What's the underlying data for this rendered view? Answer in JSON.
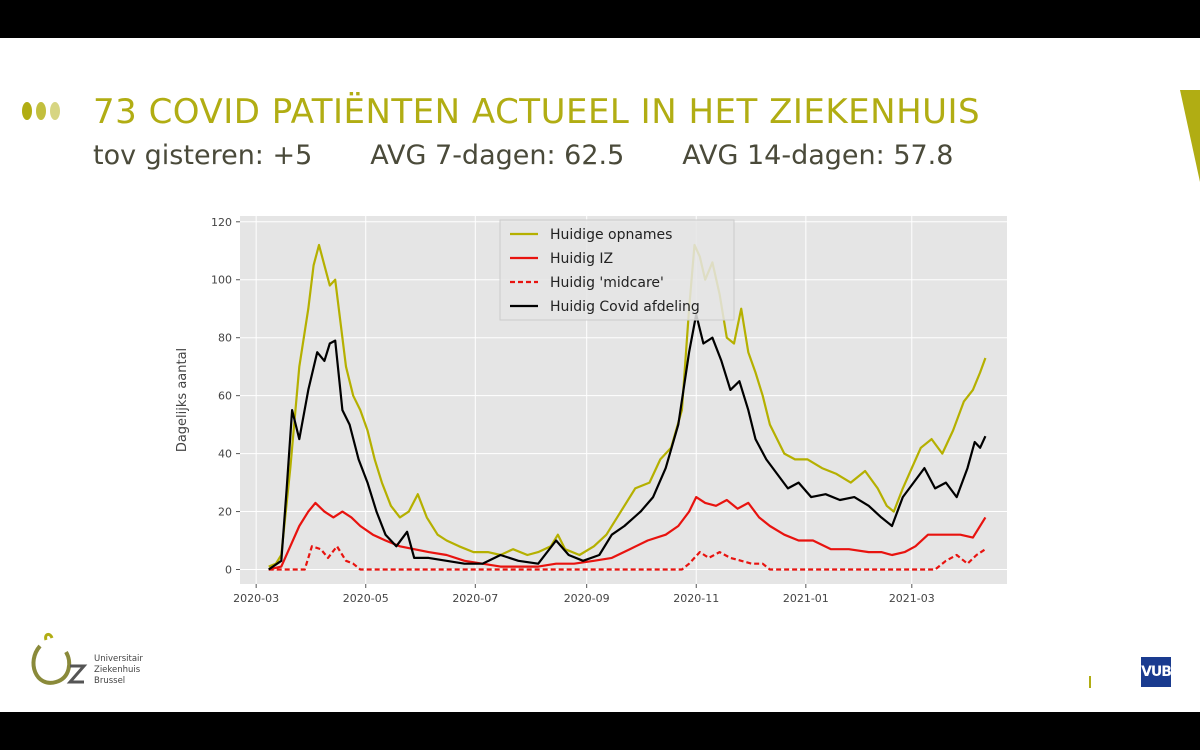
{
  "header": {
    "title": "73 COVID PATIËNTEN ACTUEEL IN HET ZIEKENHUIS",
    "stat_change": "tov gisteren: +5",
    "stat_avg7": "AVG 7-dagen: 62.5",
    "stat_avg14": "AVG 14-dagen: 57.8"
  },
  "colors": {
    "accent": "#b1ad13",
    "accent_light": "#cfcd6d",
    "dark": "#4a4a3a"
  },
  "footer": {
    "logo_lines": [
      "Universitair",
      "Ziekenhuis",
      "Brussel"
    ],
    "logo_mark": "UZ",
    "partner_logo": "VUB"
  },
  "chart_data": {
    "type": "line",
    "ylabel": "Dagelijks aantal",
    "xlabel": "",
    "ylim": [
      -5,
      122
    ],
    "yticks": [
      0,
      20,
      40,
      60,
      80,
      100,
      120
    ],
    "xticks": [
      "2020-03",
      "2020-05",
      "2020-07",
      "2020-09",
      "2020-11",
      "2021-01",
      "2021-03"
    ],
    "xlim": [
      "2020-02-21",
      "2021-04-23"
    ],
    "grid": true,
    "legend_position": "top-center",
    "series": [
      {
        "name": "Huidige opnames",
        "color": "#b5b000",
        "style": "solid",
        "points": [
          [
            "2020-03-08",
            1
          ],
          [
            "2020-03-12",
            2
          ],
          [
            "2020-03-15",
            5
          ],
          [
            "2020-03-20",
            35
          ],
          [
            "2020-03-25",
            70
          ],
          [
            "2020-03-30",
            90
          ],
          [
            "2020-04-02",
            105
          ],
          [
            "2020-04-05",
            112
          ],
          [
            "2020-04-08",
            105
          ],
          [
            "2020-04-11",
            98
          ],
          [
            "2020-04-14",
            100
          ],
          [
            "2020-04-17",
            85
          ],
          [
            "2020-04-20",
            70
          ],
          [
            "2020-04-24",
            60
          ],
          [
            "2020-04-28",
            55
          ],
          [
            "2020-05-02",
            48
          ],
          [
            "2020-05-06",
            38
          ],
          [
            "2020-05-10",
            30
          ],
          [
            "2020-05-15",
            22
          ],
          [
            "2020-05-20",
            18
          ],
          [
            "2020-05-25",
            20
          ],
          [
            "2020-05-30",
            26
          ],
          [
            "2020-06-04",
            18
          ],
          [
            "2020-06-10",
            12
          ],
          [
            "2020-06-15",
            10
          ],
          [
            "2020-06-22",
            8
          ],
          [
            "2020-06-30",
            6
          ],
          [
            "2020-07-08",
            6
          ],
          [
            "2020-07-15",
            5
          ],
          [
            "2020-07-22",
            7
          ],
          [
            "2020-07-30",
            5
          ],
          [
            "2020-08-05",
            6
          ],
          [
            "2020-08-12",
            8
          ],
          [
            "2020-08-16",
            12
          ],
          [
            "2020-08-20",
            7
          ],
          [
            "2020-08-28",
            5
          ],
          [
            "2020-09-05",
            8
          ],
          [
            "2020-09-12",
            12
          ],
          [
            "2020-09-20",
            20
          ],
          [
            "2020-09-28",
            28
          ],
          [
            "2020-10-06",
            30
          ],
          [
            "2020-10-12",
            38
          ],
          [
            "2020-10-18",
            42
          ],
          [
            "2020-10-24",
            55
          ],
          [
            "2020-10-28",
            90
          ],
          [
            "2020-10-31",
            112
          ],
          [
            "2020-11-03",
            108
          ],
          [
            "2020-11-06",
            100
          ],
          [
            "2020-11-10",
            106
          ],
          [
            "2020-11-14",
            95
          ],
          [
            "2020-11-18",
            80
          ],
          [
            "2020-11-22",
            78
          ],
          [
            "2020-11-26",
            90
          ],
          [
            "2020-11-30",
            75
          ],
          [
            "2020-12-04",
            68
          ],
          [
            "2020-12-08",
            60
          ],
          [
            "2020-12-12",
            50
          ],
          [
            "2020-12-16",
            45
          ],
          [
            "2020-12-20",
            40
          ],
          [
            "2020-12-26",
            38
          ],
          [
            "2021-01-02",
            38
          ],
          [
            "2021-01-10",
            35
          ],
          [
            "2021-01-18",
            33
          ],
          [
            "2021-01-26",
            30
          ],
          [
            "2021-02-03",
            34
          ],
          [
            "2021-02-10",
            28
          ],
          [
            "2021-02-15",
            22
          ],
          [
            "2021-02-19",
            20
          ],
          [
            "2021-02-24",
            28
          ],
          [
            "2021-03-01",
            35
          ],
          [
            "2021-03-06",
            42
          ],
          [
            "2021-03-12",
            45
          ],
          [
            "2021-03-18",
            40
          ],
          [
            "2021-03-24",
            48
          ],
          [
            "2021-03-30",
            58
          ],
          [
            "2021-04-04",
            62
          ],
          [
            "2021-04-08",
            68
          ],
          [
            "2021-04-11",
            73
          ]
        ]
      },
      {
        "name": "Huidig IZ",
        "color": "#e8130f",
        "style": "solid",
        "points": [
          [
            "2020-03-08",
            0
          ],
          [
            "2020-03-15",
            1
          ],
          [
            "2020-03-20",
            8
          ],
          [
            "2020-03-25",
            15
          ],
          [
            "2020-03-30",
            20
          ],
          [
            "2020-04-03",
            23
          ],
          [
            "2020-04-08",
            20
          ],
          [
            "2020-04-13",
            18
          ],
          [
            "2020-04-18",
            20
          ],
          [
            "2020-04-23",
            18
          ],
          [
            "2020-04-28",
            15
          ],
          [
            "2020-05-05",
            12
          ],
          [
            "2020-05-12",
            10
          ],
          [
            "2020-05-20",
            8
          ],
          [
            "2020-05-28",
            7
          ],
          [
            "2020-06-05",
            6
          ],
          [
            "2020-06-15",
            5
          ],
          [
            "2020-06-25",
            3
          ],
          [
            "2020-07-05",
            2
          ],
          [
            "2020-07-15",
            1
          ],
          [
            "2020-07-25",
            1
          ],
          [
            "2020-08-05",
            1
          ],
          [
            "2020-08-15",
            2
          ],
          [
            "2020-08-25",
            2
          ],
          [
            "2020-09-05",
            3
          ],
          [
            "2020-09-15",
            4
          ],
          [
            "2020-09-25",
            7
          ],
          [
            "2020-10-05",
            10
          ],
          [
            "2020-10-15",
            12
          ],
          [
            "2020-10-22",
            15
          ],
          [
            "2020-10-28",
            20
          ],
          [
            "2020-11-01",
            25
          ],
          [
            "2020-11-06",
            23
          ],
          [
            "2020-11-12",
            22
          ],
          [
            "2020-11-18",
            24
          ],
          [
            "2020-11-24",
            21
          ],
          [
            "2020-11-30",
            23
          ],
          [
            "2020-12-06",
            18
          ],
          [
            "2020-12-12",
            15
          ],
          [
            "2020-12-20",
            12
          ],
          [
            "2020-12-28",
            10
          ],
          [
            "2021-01-05",
            10
          ],
          [
            "2021-01-15",
            7
          ],
          [
            "2021-01-25",
            7
          ],
          [
            "2021-02-05",
            6
          ],
          [
            "2021-02-12",
            6
          ],
          [
            "2021-02-18",
            5
          ],
          [
            "2021-02-25",
            6
          ],
          [
            "2021-03-03",
            8
          ],
          [
            "2021-03-10",
            12
          ],
          [
            "2021-03-20",
            12
          ],
          [
            "2021-03-28",
            12
          ],
          [
            "2021-04-04",
            11
          ],
          [
            "2021-04-11",
            18
          ]
        ]
      },
      {
        "name": "Huidig 'midcare'",
        "color": "#e8130f",
        "style": "dashed",
        "points": [
          [
            "2020-03-08",
            0
          ],
          [
            "2020-03-28",
            0
          ],
          [
            "2020-04-01",
            8
          ],
          [
            "2020-04-06",
            7
          ],
          [
            "2020-04-10",
            4
          ],
          [
            "2020-04-15",
            8
          ],
          [
            "2020-04-20",
            3
          ],
          [
            "2020-04-24",
            2
          ],
          [
            "2020-04-28",
            0
          ],
          [
            "2020-10-24",
            0
          ],
          [
            "2020-10-28",
            2
          ],
          [
            "2020-11-03",
            6
          ],
          [
            "2020-11-08",
            4
          ],
          [
            "2020-11-14",
            6
          ],
          [
            "2020-11-20",
            4
          ],
          [
            "2020-11-26",
            3
          ],
          [
            "2020-12-02",
            2
          ],
          [
            "2020-12-08",
            2
          ],
          [
            "2020-12-12",
            0
          ],
          [
            "2021-03-14",
            0
          ],
          [
            "2021-03-20",
            3
          ],
          [
            "2021-03-26",
            5
          ],
          [
            "2021-04-01",
            2
          ],
          [
            "2021-04-06",
            5
          ],
          [
            "2021-04-11",
            7
          ]
        ]
      },
      {
        "name": "Huidig Covid afdeling",
        "color": "#000000",
        "style": "solid",
        "points": [
          [
            "2020-03-08",
            0
          ],
          [
            "2020-03-15",
            3
          ],
          [
            "2020-03-18",
            28
          ],
          [
            "2020-03-21",
            55
          ],
          [
            "2020-03-25",
            45
          ],
          [
            "2020-03-30",
            62
          ],
          [
            "2020-04-04",
            75
          ],
          [
            "2020-04-08",
            72
          ],
          [
            "2020-04-11",
            78
          ],
          [
            "2020-04-14",
            79
          ],
          [
            "2020-04-18",
            55
          ],
          [
            "2020-04-22",
            50
          ],
          [
            "2020-04-27",
            38
          ],
          [
            "2020-05-02",
            30
          ],
          [
            "2020-05-07",
            20
          ],
          [
            "2020-05-12",
            12
          ],
          [
            "2020-05-18",
            8
          ],
          [
            "2020-05-24",
            13
          ],
          [
            "2020-05-28",
            4
          ],
          [
            "2020-06-05",
            4
          ],
          [
            "2020-06-15",
            3
          ],
          [
            "2020-06-25",
            2
          ],
          [
            "2020-07-05",
            2
          ],
          [
            "2020-07-15",
            5
          ],
          [
            "2020-07-25",
            3
          ],
          [
            "2020-08-05",
            2
          ],
          [
            "2020-08-15",
            10
          ],
          [
            "2020-08-22",
            5
          ],
          [
            "2020-08-30",
            3
          ],
          [
            "2020-09-08",
            5
          ],
          [
            "2020-09-15",
            12
          ],
          [
            "2020-09-22",
            15
          ],
          [
            "2020-10-01",
            20
          ],
          [
            "2020-10-08",
            25
          ],
          [
            "2020-10-15",
            35
          ],
          [
            "2020-10-22",
            50
          ],
          [
            "2020-10-28",
            75
          ],
          [
            "2020-11-01",
            88
          ],
          [
            "2020-11-05",
            78
          ],
          [
            "2020-11-10",
            80
          ],
          [
            "2020-11-15",
            72
          ],
          [
            "2020-11-20",
            62
          ],
          [
            "2020-11-25",
            65
          ],
          [
            "2020-11-30",
            55
          ],
          [
            "2020-12-04",
            45
          ],
          [
            "2020-12-10",
            38
          ],
          [
            "2020-12-16",
            33
          ],
          [
            "2020-12-22",
            28
          ],
          [
            "2020-12-28",
            30
          ],
          [
            "2021-01-04",
            25
          ],
          [
            "2021-01-12",
            26
          ],
          [
            "2021-01-20",
            24
          ],
          [
            "2021-01-28",
            25
          ],
          [
            "2021-02-05",
            22
          ],
          [
            "2021-02-12",
            18
          ],
          [
            "2021-02-18",
            15
          ],
          [
            "2021-02-24",
            25
          ],
          [
            "2021-03-02",
            30
          ],
          [
            "2021-03-08",
            35
          ],
          [
            "2021-03-14",
            28
          ],
          [
            "2021-03-20",
            30
          ],
          [
            "2021-03-26",
            25
          ],
          [
            "2021-04-01",
            35
          ],
          [
            "2021-04-05",
            44
          ],
          [
            "2021-04-08",
            42
          ],
          [
            "2021-04-11",
            46
          ]
        ]
      }
    ]
  }
}
